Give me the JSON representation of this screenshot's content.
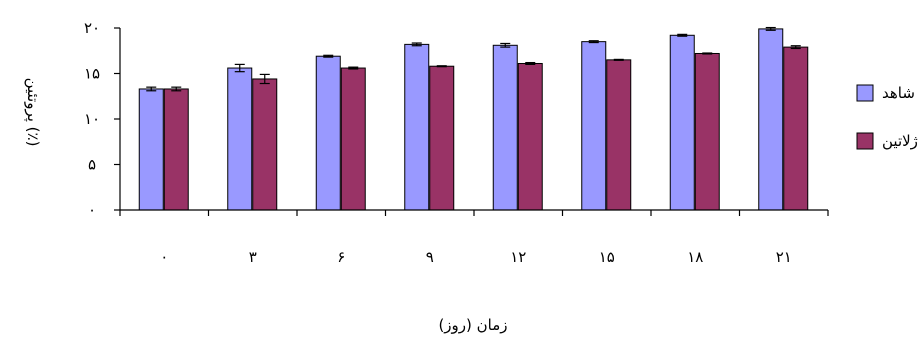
{
  "chart_data": {
    "type": "bar",
    "categories": [
      "۰",
      "۳",
      "۶",
      "۹",
      "۱۲",
      "۱۵",
      "۱۸",
      "۲۱"
    ],
    "y_ticks": [
      0,
      5,
      10,
      15,
      20
    ],
    "y_tick_labels": [
      "۰",
      "۵",
      "۱۰",
      "۱۵",
      "۲۰"
    ],
    "ylim": [
      0,
      20
    ],
    "xlabel": "زمان (روز)",
    "ylabel": "پروتئین (٪)",
    "grid": false,
    "legend_position": "right",
    "series": [
      {
        "name": "شاهد",
        "color": "#9999ff",
        "values": [
          13.3,
          15.6,
          16.9,
          18.2,
          18.1,
          18.5,
          19.2,
          19.9
        ],
        "errors": [
          0.2,
          0.4,
          0.1,
          0.15,
          0.2,
          0.1,
          0.1,
          0.15
        ]
      },
      {
        "name": "ژلاتین",
        "color": "#993366",
        "values": [
          13.3,
          14.4,
          15.6,
          15.8,
          16.1,
          16.5,
          17.2,
          17.9
        ],
        "errors": [
          0.2,
          0.5,
          0.1,
          0.05,
          0.1,
          0.05,
          0.05,
          0.15
        ]
      }
    ]
  }
}
